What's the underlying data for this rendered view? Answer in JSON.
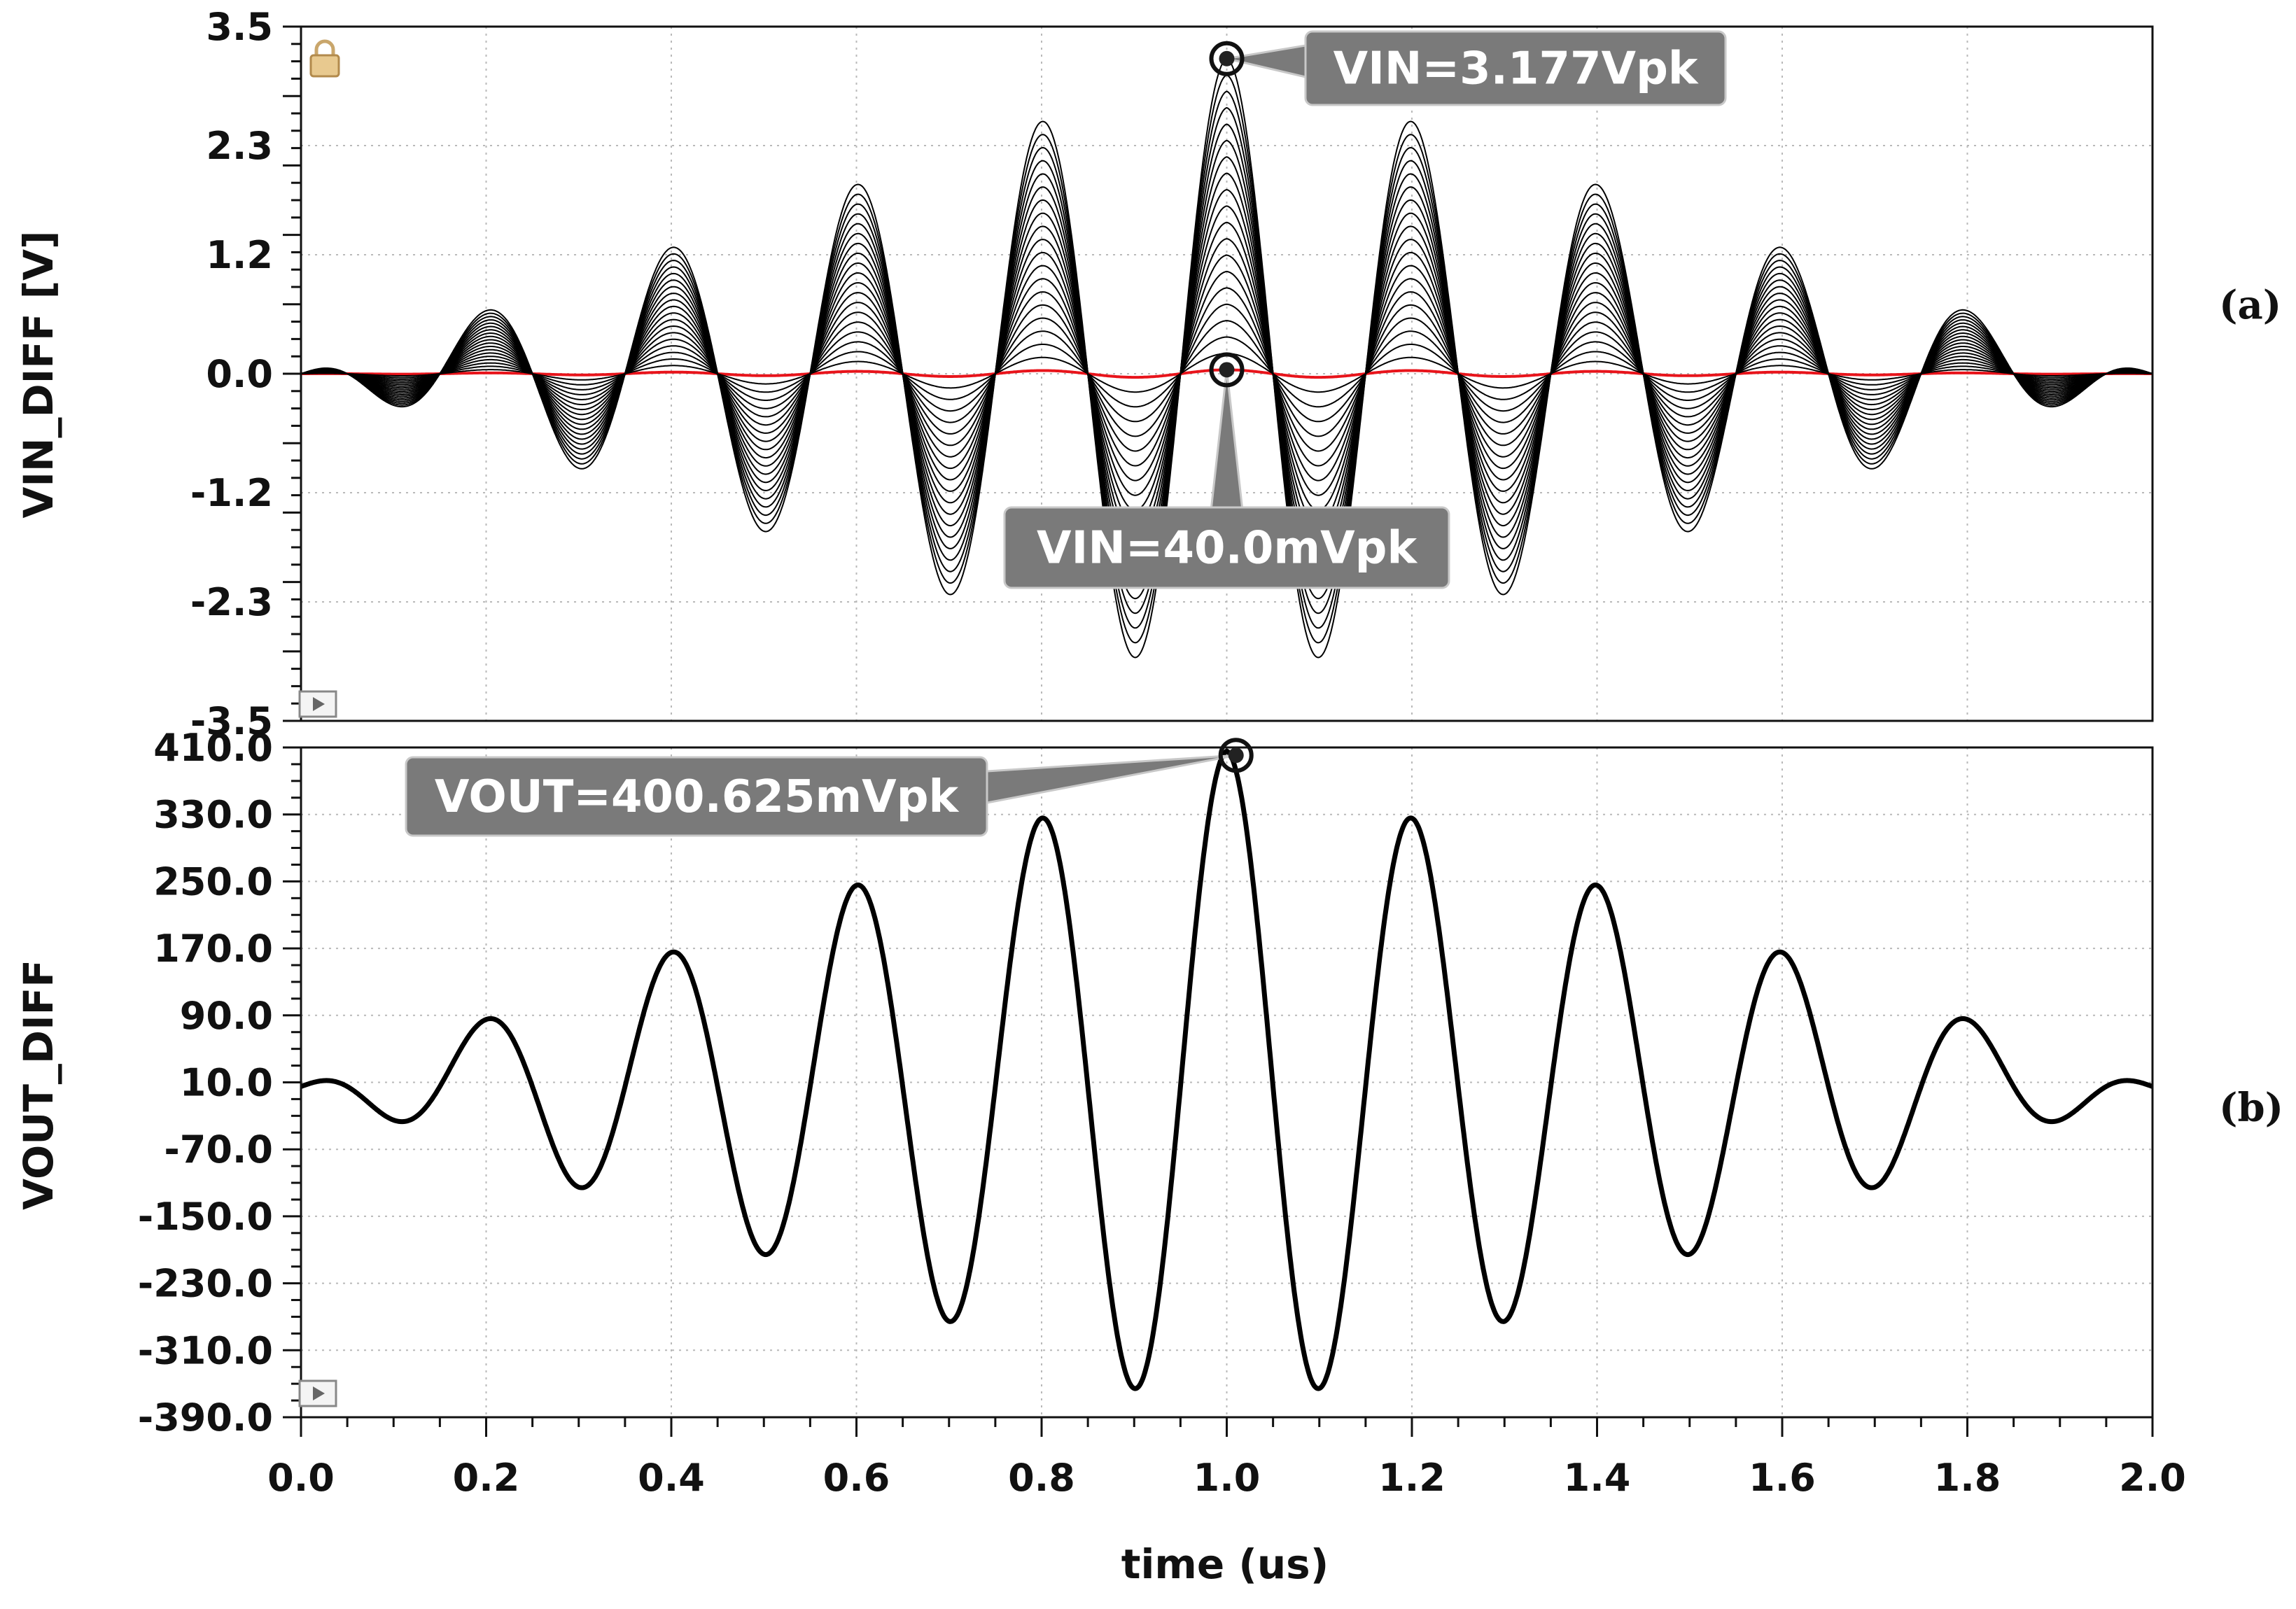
{
  "chart_data": [
    {
      "type": "line",
      "panel_label": "(a)",
      "ylabel": "VIN_DIFF [V]",
      "xlabel": "",
      "xlim": [
        0.0,
        2.0
      ],
      "ylim": [
        -3.5,
        3.5
      ],
      "yticks": [
        "3.5",
        "2.3",
        "1.2",
        "0.0",
        "-1.2",
        "-2.3",
        "-3.5"
      ],
      "ytick_values": [
        3.5,
        2.3,
        1.2,
        0.0,
        -1.2,
        -2.3,
        -3.5
      ],
      "series_description": "family of 20 sweep traces, amplitude scaled from 40.0mVpk to 3.177Vpk",
      "peak_amplitude": 3.177,
      "min_amplitude": 0.04,
      "trace_count": 20,
      "signal": {
        "carrier_period_us": 0.2,
        "envelope_center_us": 1.0,
        "envelope_width_us": 1.0,
        "x": [
          0.0,
          0.1,
          0.2,
          0.3,
          0.4,
          0.5,
          0.6,
          0.7,
          0.8,
          0.9,
          1.0,
          1.1,
          1.2,
          1.3,
          1.4,
          1.5,
          1.6,
          1.7,
          1.8,
          1.9,
          2.0
        ],
        "y": [
          0.0,
          -0.32,
          0.64,
          -0.95,
          1.27,
          -1.59,
          1.91,
          -2.22,
          2.54,
          -2.86,
          3.177,
          -2.86,
          2.54,
          -2.22,
          1.91,
          -1.59,
          1.27,
          -0.95,
          0.64,
          -0.32,
          0.0
        ]
      },
      "highlight_color": "#e8141b",
      "trace_color": "#000000",
      "markers": [
        {
          "label": "VIN=3.177Vpk",
          "x": 1.0,
          "y": 3.177
        },
        {
          "label": "VIN=40.0mVpk",
          "x": 1.0,
          "y": 0.04
        }
      ],
      "icons": [
        "lock-icon",
        "play-icon"
      ]
    },
    {
      "type": "line",
      "panel_label": "(b)",
      "ylabel": "VOUT_DIFF",
      "xlabel": "time (us)",
      "xlim": [
        0.0,
        2.0
      ],
      "ylim": [
        -390.0,
        410.0
      ],
      "yticks": [
        "410.0",
        "330.0",
        "250.0",
        "170.0",
        "90.0",
        "10.0",
        "-70.0",
        "-150.0",
        "-230.0",
        "-310.0",
        "-390.0"
      ],
      "ytick_values": [
        410,
        330,
        250,
        170,
        90,
        10,
        -70,
        -150,
        -230,
        -310,
        -390
      ],
      "xticks": [
        "0.0",
        "0.2",
        "0.4",
        "0.6",
        "0.8",
        "1.0",
        "1.2",
        "1.4",
        "1.6",
        "1.8",
        "2.0"
      ],
      "xtick_values": [
        0.0,
        0.2,
        0.4,
        0.6,
        0.8,
        1.0,
        1.2,
        1.4,
        1.6,
        1.8,
        2.0
      ],
      "signal": {
        "carrier_period_us": 0.2,
        "envelope_center_us": 1.0,
        "envelope_width_us": 1.0,
        "offset_mv": 5,
        "x": [
          0.0,
          0.1,
          0.2,
          0.3,
          0.4,
          0.5,
          0.6,
          0.7,
          0.8,
          0.9,
          1.0,
          1.1,
          1.2,
          1.3,
          1.4,
          1.5,
          1.6,
          1.7,
          1.8,
          1.9,
          2.0
        ],
        "y": [
          0.0,
          -40,
          80,
          -120,
          160,
          -200,
          240,
          -280,
          320,
          -360,
          400.625,
          -360,
          320,
          -280,
          240,
          -200,
          160,
          -120,
          80,
          -40,
          0.0
        ]
      },
      "trace_color": "#000000",
      "markers": [
        {
          "label": "VOUT=400.625mVpk",
          "x": 1.01,
          "y": 400.625
        }
      ],
      "icons": [
        "play-icon"
      ]
    }
  ]
}
